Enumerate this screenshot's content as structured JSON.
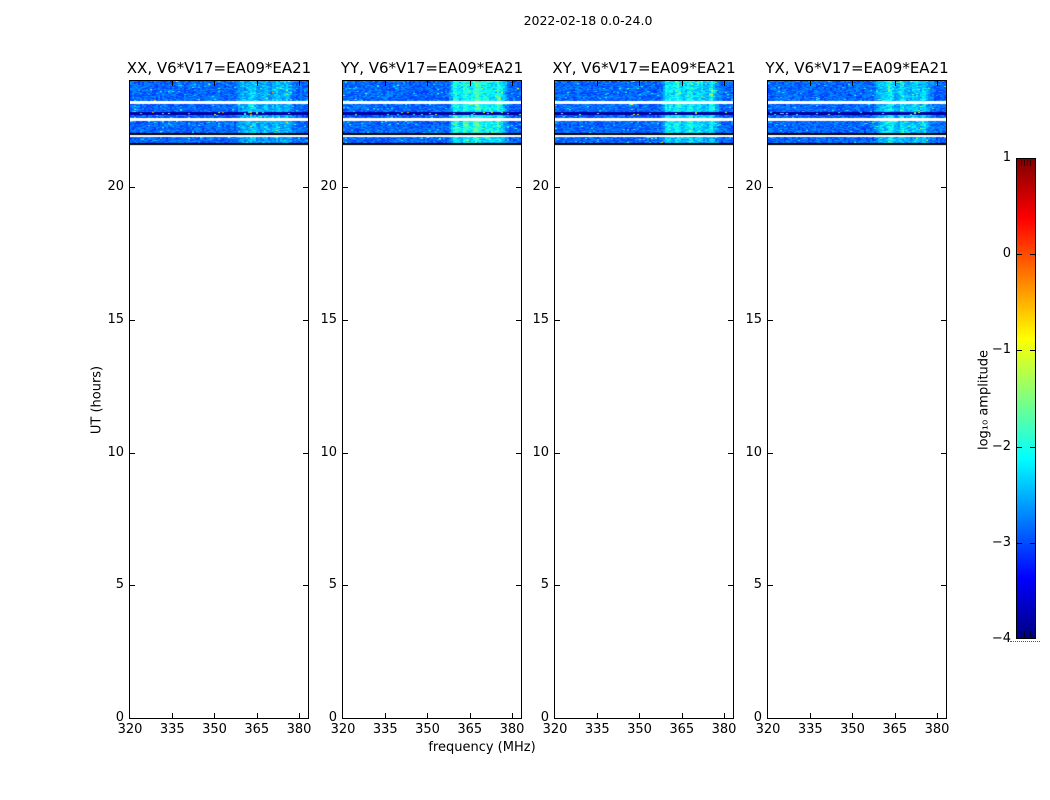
{
  "figure": {
    "title": "2022-02-18 0.0-24.0"
  },
  "chart_data": {
    "type": "heatmap",
    "title": "2022-02-18 0.0-24.0",
    "xlabel": "frequency (MHz)",
    "ylabel": "UT (hours)",
    "x_ticks": [
      320,
      335,
      350,
      365,
      380
    ],
    "y_ticks": [
      0,
      5,
      10,
      15,
      20
    ],
    "x_range_mhz": [
      320,
      383.2
    ],
    "y_range_hours": [
      0,
      24
    ],
    "baseline": "V6*V17=EA09*EA21",
    "panels": [
      {
        "label": "XX, V6*V17=EA09*EA21",
        "polarization": "XX",
        "stripe_strength": 0.55,
        "seed": 101
      },
      {
        "label": "YY, V6*V17=EA09*EA21",
        "polarization": "YY",
        "stripe_strength": 1.0,
        "seed": 202
      },
      {
        "label": "XY, V6*V17=EA09*EA21",
        "polarization": "XY",
        "stripe_strength": 0.85,
        "seed": 303
      },
      {
        "label": "YX, V6*V17=EA09*EA21",
        "polarization": "YX",
        "stripe_strength": 0.72,
        "seed": 404
      }
    ],
    "colorbar": {
      "label": "log₁₀ amplitude",
      "ticks": [
        1,
        0,
        -1,
        -2,
        -3,
        -4
      ],
      "vmin": -4,
      "vmax": 1,
      "colormap": "jet"
    },
    "data_summary": {
      "observed_ut_range": [
        21.58,
        24.0
      ],
      "background_log_amp_range": [
        -3.4,
        -2.6
      ],
      "rfi_stripe_freq_mhz": [
        358,
        378
      ],
      "rfi_stripe_log_amp": [
        -2.3,
        -1.4
      ],
      "band_rows": [
        {
          "ut_from": 24.0,
          "ut_to": 23.23,
          "kind": "noise"
        },
        {
          "ut_from": 23.23,
          "ut_to": 23.14,
          "kind": "white"
        },
        {
          "ut_from": 23.14,
          "ut_to": 22.83,
          "kind": "noise"
        },
        {
          "ut_from": 22.83,
          "ut_to": 22.71,
          "kind": "dark"
        },
        {
          "ut_from": 22.71,
          "ut_to": 22.6,
          "kind": "noise"
        },
        {
          "ut_from": 22.6,
          "ut_to": 22.51,
          "kind": "white"
        },
        {
          "ut_from": 22.51,
          "ut_to": 22.04,
          "kind": "noise"
        },
        {
          "ut_from": 22.04,
          "ut_to": 21.95,
          "kind": "black"
        },
        {
          "ut_from": 21.95,
          "ut_to": 21.89,
          "kind": "white"
        },
        {
          "ut_from": 21.89,
          "ut_to": 21.79,
          "kind": "noise2"
        },
        {
          "ut_from": 21.79,
          "ut_to": 21.76,
          "kind": "white"
        },
        {
          "ut_from": 21.76,
          "ut_to": 21.66,
          "kind": "noise2"
        },
        {
          "ut_from": 21.66,
          "ut_to": 21.58,
          "kind": "black"
        }
      ]
    }
  }
}
